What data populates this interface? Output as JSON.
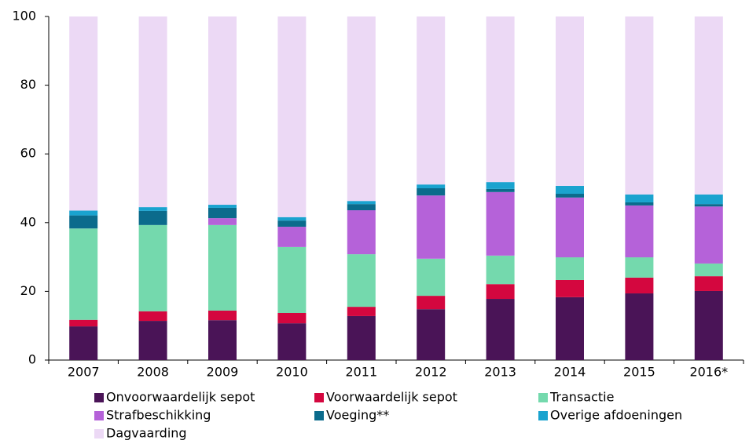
{
  "chart_data": {
    "type": "stacked_bar",
    "categories": [
      "2007",
      "2008",
      "2009",
      "2010",
      "2011",
      "2012",
      "2013",
      "2014",
      "2015",
      "2016*"
    ],
    "series": [
      {
        "name": "Onvoorwaardelijk sepot",
        "color": "#4a1457",
        "values": [
          9.8,
          11.4,
          11.6,
          10.7,
          12.8,
          14.8,
          17.8,
          18.3,
          19.4,
          20.1
        ]
      },
      {
        "name": "Voorwaardelijk sepot",
        "color": "#d4073f",
        "values": [
          1.9,
          2.8,
          2.8,
          3.0,
          2.7,
          3.9,
          4.3,
          5.0,
          4.6,
          4.3
        ]
      },
      {
        "name": "Transactie",
        "color": "#74d9ad",
        "values": [
          26.6,
          25.1,
          24.9,
          19.2,
          15.3,
          10.8,
          8.3,
          6.6,
          5.9,
          3.7
        ]
      },
      {
        "name": "Strafbeschikking",
        "color": "#b562d9",
        "values": [
          0,
          0,
          2.0,
          5.9,
          12.8,
          18.4,
          18.5,
          17.4,
          15.1,
          16.6
        ]
      },
      {
        "name": "Voeging**",
        "color": "#0b6b8c",
        "values": [
          3.8,
          4.1,
          3.0,
          1.8,
          1.8,
          2.1,
          0.9,
          1.1,
          0.9,
          0.7
        ]
      },
      {
        "name": "Overige afdoeningen",
        "color": "#1aa3cf",
        "values": [
          1.4,
          1.1,
          0.9,
          1.0,
          0.9,
          1.1,
          2.0,
          2.3,
          2.3,
          2.8
        ]
      },
      {
        "name": "Dagvaarding",
        "color": "#ecd9f5",
        "values": [
          56.5,
          55.5,
          54.8,
          58.4,
          53.7,
          48.9,
          48.2,
          49.3,
          51.8,
          51.8
        ]
      }
    ],
    "ylim": [
      0,
      100
    ],
    "yticks": [
      0,
      20,
      40,
      60,
      80,
      100
    ]
  }
}
